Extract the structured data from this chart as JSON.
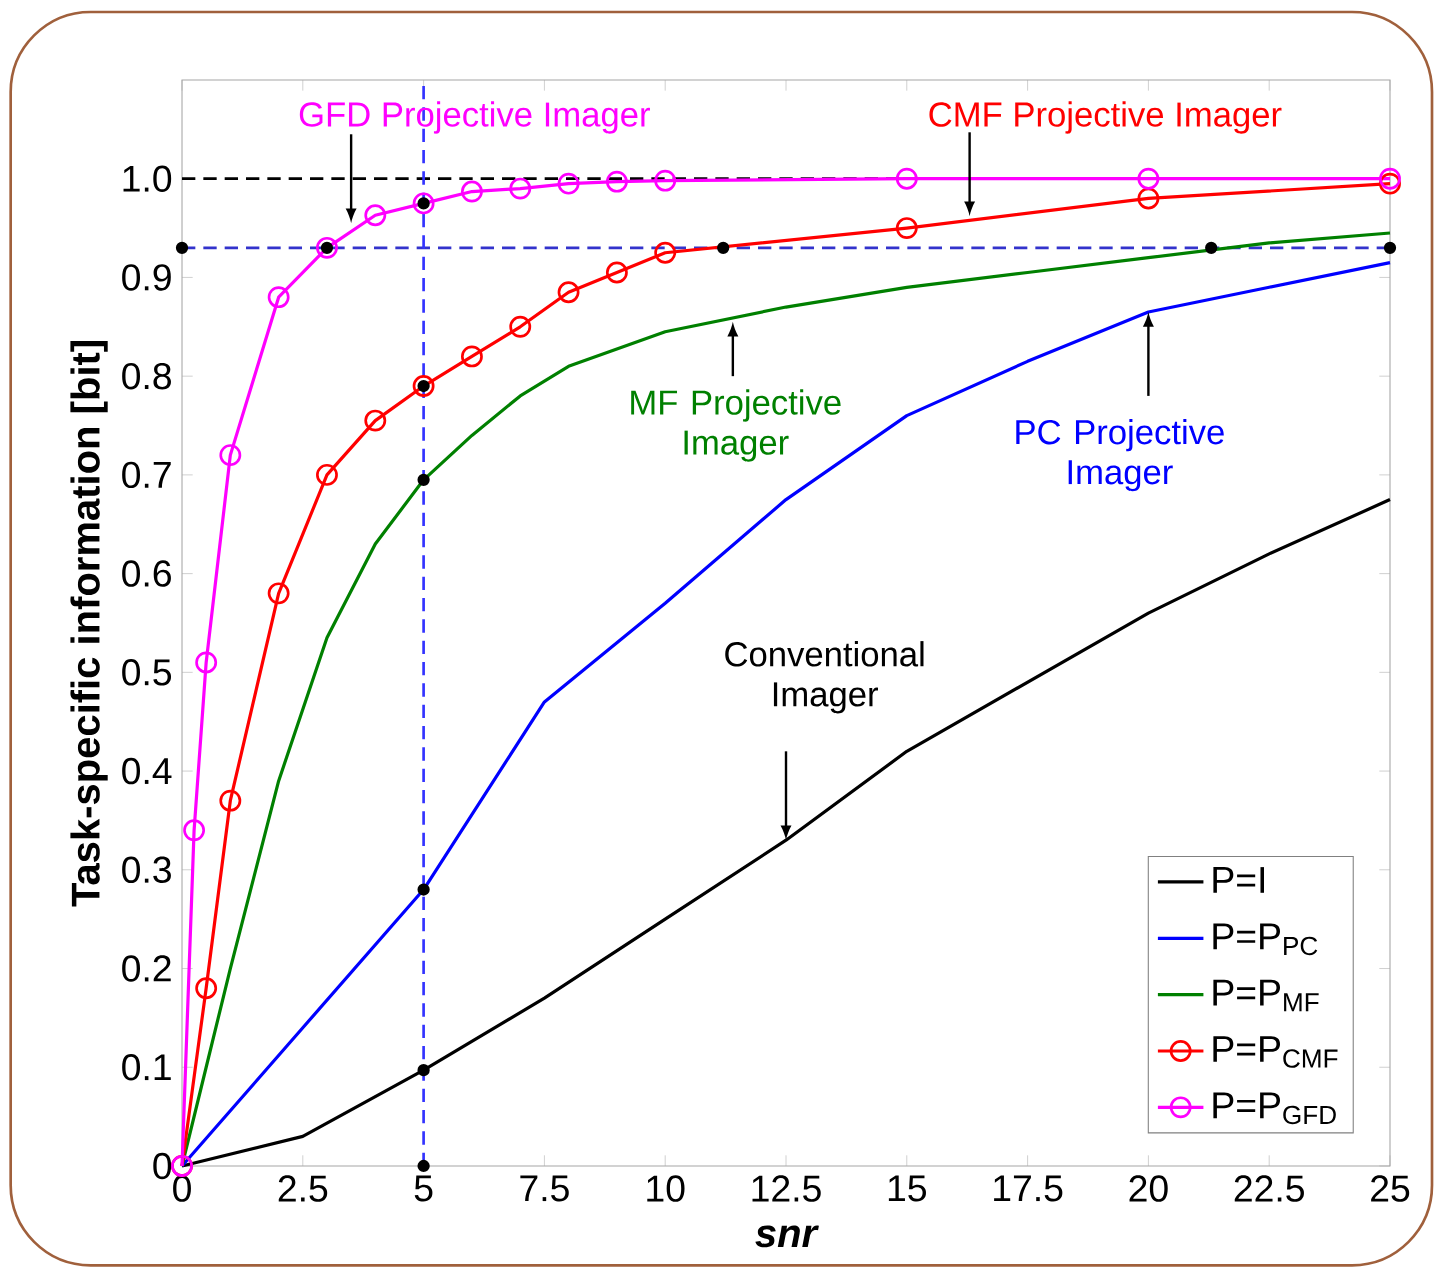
{
  "chart_data": {
    "type": "line",
    "xlabel": "snr",
    "ylabel": "Task-specific information [bit]",
    "xlim": [
      0,
      25
    ],
    "ylim": [
      0,
      1.1
    ],
    "xticks": [
      0,
      2.5,
      5,
      7.5,
      10,
      12.5,
      15,
      17.5,
      20,
      22.5,
      25
    ],
    "yticks": [
      0,
      0.1,
      0.2,
      0.3,
      0.4,
      0.5,
      0.6,
      0.7,
      0.8,
      0.9,
      {
        "value": 1,
        "label": "1.0"
      }
    ],
    "legend": "bottom right",
    "series": [
      {
        "name": "P=I",
        "color": "#000000",
        "marker": "none",
        "x": [
          0,
          2.5,
          5,
          7.5,
          10,
          12.5,
          15,
          17.5,
          20,
          22.5,
          25
        ],
        "values": [
          0,
          0.03,
          0.097,
          0.17,
          0.25,
          0.33,
          0.42,
          0.49,
          0.56,
          0.62,
          0.675
        ]
      },
      {
        "name": "P=P$_{PC}$",
        "color": "#0000ff",
        "marker": "none",
        "x": [
          0,
          2.5,
          5,
          7.5,
          10,
          12.5,
          15,
          17.5,
          20,
          22.5,
          25
        ],
        "values": [
          0,
          0.14,
          0.28,
          0.47,
          0.57,
          0.675,
          0.76,
          0.815,
          0.865,
          0.89,
          0.915
        ]
      },
      {
        "name": "P=P$_{MF}$",
        "color": "#008000",
        "marker": "none",
        "x": [
          0,
          0.5,
          1,
          2,
          3,
          4,
          5,
          6,
          7,
          8,
          10,
          12.5,
          15,
          17.5,
          20,
          22.5,
          25
        ],
        "values": [
          0,
          0.1,
          0.2,
          0.39,
          0.535,
          0.63,
          0.695,
          0.74,
          0.78,
          0.81,
          0.845,
          0.87,
          0.89,
          0.905,
          0.92,
          0.935,
          0.945
        ]
      },
      {
        "name": "P=P$_{CMF}$",
        "color": "#ff0000",
        "marker": "circle",
        "x": [
          0,
          0.5,
          1,
          2,
          3,
          4,
          5,
          6,
          7,
          8,
          9,
          10,
          15,
          20,
          25
        ],
        "values": [
          0,
          0.18,
          0.37,
          0.58,
          0.7,
          0.755,
          0.79,
          0.82,
          0.85,
          0.885,
          0.905,
          0.925,
          0.95,
          0.98,
          0.995
        ]
      },
      {
        "name": "P=P$_{GFD}$",
        "color": "#ff00ff",
        "marker": "circle",
        "x": [
          0,
          0.25,
          0.5,
          1,
          2,
          3,
          4,
          5,
          6,
          7,
          8,
          9,
          10,
          15,
          20,
          25
        ],
        "values": [
          0,
          0.34,
          0.51,
          0.72,
          0.88,
          0.93,
          0.963,
          0.975,
          0.987,
          0.99,
          0.995,
          0.997,
          0.998,
          1,
          1,
          1
        ]
      },
      {
        "type": "scatter",
        "color": "#000000",
        "marker": "circle",
        "x": [
          5,
          5,
          5,
          5,
          5,
          5,
          0,
          3,
          11.2,
          21.3,
          25
        ],
        "values": [
          0.975,
          0.79,
          0.695,
          0.28,
          0.097,
          0,
          0.93,
          0.93,
          0.93,
          0.93,
          0.93
        ]
      }
    ],
    "ref_lines": [
      {
        "axis": "y",
        "value": 1,
        "color": "#000000",
        "line_style": "dashed"
      },
      {
        "axis": "y",
        "value": 0.93,
        "color": "#3333cc",
        "line_style": "dashed"
      },
      {
        "axis": "x",
        "value": 5,
        "color": "#3333ff",
        "line_style": "dashed"
      }
    ],
    "annotations": [
      {
        "text": "GFD Projective Imager",
        "x": 3.5,
        "y": 0.955
      },
      {
        "text": "CMF Projective Imager",
        "x": 16.3,
        "y": 0.962
      },
      {
        "text": "MF Projective Imager",
        "x": 11.4,
        "y": 0.855
      },
      {
        "text": "PC Projective Imager",
        "x": 20,
        "y": 0.865
      },
      {
        "text": "Conventional Imager",
        "x": 12.5,
        "y": 0.33
      }
    ]
  }
}
